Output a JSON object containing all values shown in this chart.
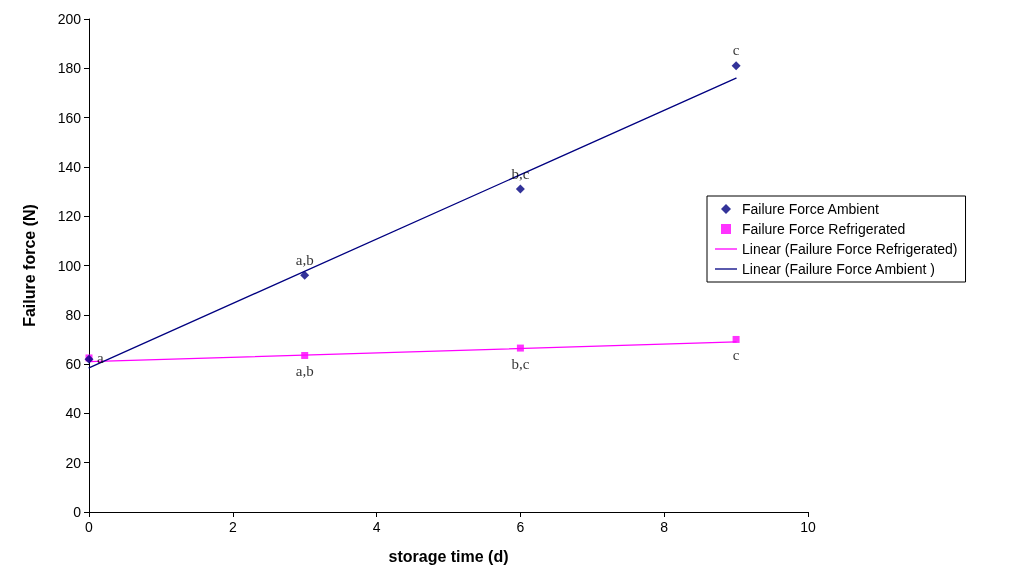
{
  "chart_data": {
    "type": "scatter",
    "xlabel": "storage time (d)",
    "ylabel": "Failure force (N)",
    "xlim": [
      0,
      10
    ],
    "xticks": [
      0,
      2,
      4,
      6,
      8,
      10
    ],
    "ylim": [
      0,
      200
    ],
    "yticks": [
      0,
      20,
      40,
      60,
      80,
      100,
      120,
      140,
      160,
      180,
      200
    ],
    "grid": false,
    "legend": "right",
    "series": [
      {
        "name": "Failure Force Ambient",
        "type": "scatter",
        "marker": "diamond",
        "color": "#000080",
        "x": [
          0,
          3,
          6,
          9
        ],
        "values": [
          62,
          96,
          131,
          181
        ]
      },
      {
        "name": "Failure Force Refrigerated",
        "type": "scatter",
        "marker": "square",
        "color": "#ff00ff",
        "x": [
          0,
          3,
          6,
          9
        ],
        "values": [
          62.5,
          63.5,
          66.5,
          70
        ]
      },
      {
        "name": "Linear (Failure Force Refrigerated)",
        "type": "line",
        "marker": "none",
        "line_style": "solid",
        "color": "#ff00ff",
        "x": [
          0,
          9
        ],
        "values": [
          61,
          69
        ]
      },
      {
        "name": "Linear (Failure Force Ambient )",
        "type": "line",
        "marker": "none",
        "line_style": "solid",
        "color": "#000080",
        "x": [
          0,
          9
        ],
        "values": [
          58.5,
          176
        ]
      }
    ],
    "annotations": [
      {
        "text": "a",
        "x": 0,
        "y": 62.5
      },
      {
        "text": "a,b",
        "x": 3,
        "y": 96
      },
      {
        "text": "b,c",
        "x": 6,
        "y": 131
      },
      {
        "text": "c",
        "x": 9,
        "y": 181
      },
      {
        "text": "a,b",
        "x": 3,
        "y": 63.5
      },
      {
        "text": "b,c",
        "x": 6,
        "y": 66.5
      },
      {
        "text": "c",
        "x": 9,
        "y": 70
      }
    ]
  }
}
